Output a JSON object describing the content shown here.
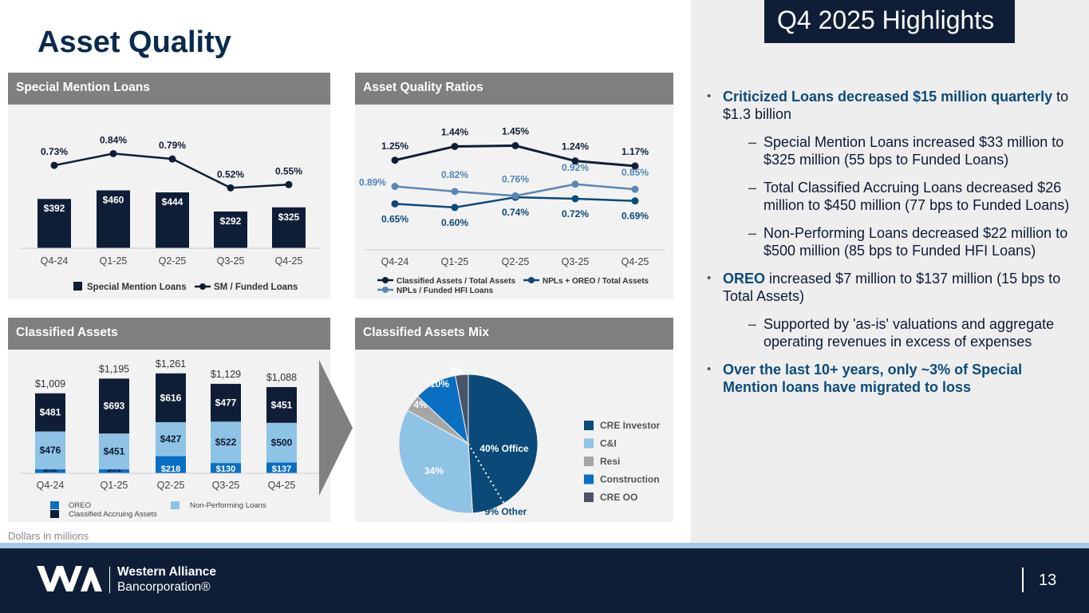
{
  "page": {
    "title": "Asset Quality",
    "highlights_title": "Q4 2025 Highlights",
    "footnote": "Dollars in millions",
    "page_number": "13",
    "logo": {
      "line1": "Western Alliance",
      "line2": "Bancorporation®"
    }
  },
  "colors": {
    "navy": "#0f1e36",
    "dark_blue": "#0b4a78",
    "light_blue": "#8ec3e6",
    "mid_blue": "#5a86b5",
    "gray": "#a6a6a6",
    "slate": "#4a5468",
    "construction": "#0a6fc2",
    "header_gray": "#7f7f7f"
  },
  "highlights": [
    {
      "level": 1,
      "strong": "Criticized Loans decreased $15 million quarterly",
      "text": " to $1.3 billion"
    },
    {
      "level": 2,
      "strong": "",
      "text": "Special Mention Loans increased $33 million to $325 million (55 bps to Funded Loans)"
    },
    {
      "level": 2,
      "strong": "",
      "text": "Total Classified Accruing Loans decreased $26 million to $450 million (77 bps to Funded Loans)"
    },
    {
      "level": 2,
      "strong": "",
      "text": "Non-Performing Loans decreased $22 million to $500 million (85 bps to Funded HFI Loans)"
    },
    {
      "level": 1,
      "strong": "OREO",
      "text": " increased $7 million to $137 million (15 bps to Total Assets)"
    },
    {
      "level": 2,
      "strong": "",
      "text": "Supported by 'as-is' valuations and aggregate operating revenues in excess of expenses"
    },
    {
      "level": 1,
      "strong": "Over the last 10+ years, only ~3% of Special Mention loans have migrated to loss",
      "text": ""
    }
  ],
  "chart_data": [
    {
      "id": "special_mention",
      "type": "bar",
      "title": "Special Mention Loans",
      "categories": [
        "Q4-24",
        "Q1-25",
        "Q2-25",
        "Q3-25",
        "Q4-25"
      ],
      "series": [
        {
          "name": "Special Mention Loans",
          "kind": "bar",
          "values": [
            392,
            460,
            444,
            292,
            325
          ],
          "labels": [
            "$392",
            "$460",
            "$444",
            "$292",
            "$325"
          ]
        },
        {
          "name": "SM / Funded Loans",
          "kind": "line",
          "values": [
            0.73,
            0.84,
            0.79,
            0.52,
            0.55
          ],
          "labels": [
            "0.73%",
            "0.84%",
            "0.79%",
            "0.52%",
            "0.55%"
          ]
        }
      ],
      "legend_position": "bottom"
    },
    {
      "id": "asset_quality_ratios",
      "type": "line",
      "title": "Asset Quality Ratios",
      "categories": [
        "Q4-24",
        "Q1-25",
        "Q2-25",
        "Q3-25",
        "Q4-25"
      ],
      "series": [
        {
          "name": "Classified Assets / Total Assets",
          "values": [
            1.25,
            1.44,
            1.45,
            1.24,
            1.17
          ],
          "labels": [
            "1.25%",
            "1.44%",
            "1.45%",
            "1.24%",
            "1.17%"
          ]
        },
        {
          "name": "NPLs + OREO / Total Assets",
          "values": [
            0.65,
            0.6,
            0.74,
            0.72,
            0.69
          ],
          "labels": [
            "0.65%",
            "0.60%",
            "0.74%",
            "0.72%",
            "0.69%"
          ]
        },
        {
          "name": "NPLs  / Funded HFI Loans",
          "values": [
            0.89,
            0.82,
            0.76,
            0.92,
            0.85
          ],
          "labels": [
            "0.89%",
            "0.82%",
            "0.76%",
            "0.92%",
            "0.85%"
          ]
        }
      ],
      "legend_position": "bottom"
    },
    {
      "id": "classified_assets",
      "type": "bar",
      "stacked": true,
      "title": "Classified Assets",
      "categories": [
        "Q4-24",
        "Q1-25",
        "Q2-25",
        "Q3-25",
        "Q4-25"
      ],
      "totals": [
        1009,
        1195,
        1261,
        1129,
        1088
      ],
      "total_labels": [
        "$1,009",
        "$1,195",
        "$1,261",
        "$1,129",
        "$1,088"
      ],
      "series": [
        {
          "name": "OREO",
          "values": [
            52,
            51,
            218,
            130,
            137
          ],
          "labels": [
            "$52",
            "$51",
            "$218",
            "$130",
            "$137"
          ]
        },
        {
          "name": "Non-Performing Loans",
          "values": [
            476,
            451,
            427,
            522,
            500
          ],
          "labels": [
            "$476",
            "$451",
            "$427",
            "$522",
            "$500"
          ]
        },
        {
          "name": "Classified Accruing Assets",
          "values": [
            481,
            693,
            616,
            477,
            451
          ],
          "labels": [
            "$481",
            "$693",
            "$616",
            "$477",
            "$451"
          ]
        }
      ],
      "legend_position": "bottom"
    },
    {
      "id": "classified_assets_mix",
      "type": "pie",
      "title": "Classified Assets Mix",
      "slices": [
        {
          "name": "CRE Investor",
          "value": 49,
          "label": "40% Office",
          "callout": "9% Other"
        },
        {
          "name": "C&I",
          "value": 34,
          "label": "34%"
        },
        {
          "name": "Resi",
          "value": 4,
          "label": "4%"
        },
        {
          "name": "Construction",
          "value": 10,
          "label": "10%"
        },
        {
          "name": "CRE OO",
          "value": 3,
          "label": "3%"
        }
      ],
      "legend_position": "right"
    }
  ]
}
